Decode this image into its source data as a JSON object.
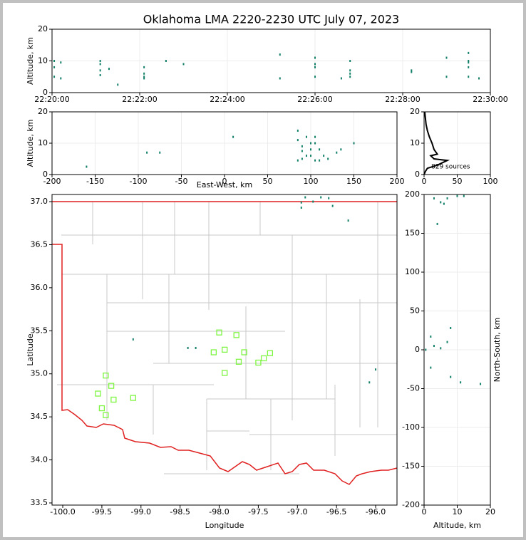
{
  "chart_data": [
    {
      "type": "scatter",
      "title": "Oklahoma LMA 2220-2230 UTC July 07, 2023",
      "ylabel": "Altitude, km",
      "xlim": [
        0,
        10
      ],
      "xticks": [
        {
          "value": 0,
          "label": "22:20:00"
        },
        {
          "value": 2,
          "label": "22:22:00"
        },
        {
          "value": 4,
          "label": "22:24:00"
        },
        {
          "value": 6,
          "label": "22:26:00"
        },
        {
          "value": 8,
          "label": "22:28:00"
        },
        {
          "value": 10,
          "label": "22:30:00"
        }
      ],
      "ylim": [
        0,
        20
      ],
      "yticks": [
        0,
        10,
        20
      ],
      "grid": true,
      "series": [
        {
          "color": "#13806a",
          "marker": "dot",
          "x": [
            0.05,
            0.05,
            0.05,
            0.2,
            0.2,
            1.1,
            1.1,
            1.1,
            1.1,
            1.3,
            1.5,
            2.1,
            2.1,
            2.1,
            2.1,
            2.6,
            3.0,
            5.2,
            5.2,
            6.0,
            6.0,
            6.0,
            6.0,
            6.6,
            6.8,
            6.8,
            6.8,
            6.8,
            8.2,
            8.2,
            9.0,
            9.0,
            9.5,
            9.5,
            9.5,
            9.5,
            9.5,
            9.74
          ],
          "y": [
            10,
            5,
            8,
            9.5,
            4.5,
            10,
            5.5,
            7,
            9,
            7.5,
            2.5,
            8,
            5,
            6,
            4.5,
            10,
            9,
            12,
            4.5,
            11,
            8,
            5,
            9,
            4.5,
            10,
            7,
            5,
            6,
            6.5,
            7,
            11,
            5,
            12.5,
            8,
            5,
            10,
            9.5,
            4.5
          ]
        }
      ]
    },
    {
      "type": "scatter",
      "xlabel": "East-West, km",
      "ylabel": "Altitude, km",
      "xlim": [
        -200,
        200
      ],
      "xticks": [
        -200,
        -150,
        -100,
        -50,
        0,
        50,
        100,
        150,
        200
      ],
      "ylim": [
        0,
        20
      ],
      "yticks": [
        0,
        10,
        20
      ],
      "grid": true,
      "series": [
        {
          "color": "#13806a",
          "marker": "dot",
          "x": [
            -160,
            10,
            -90,
            -75,
            85,
            85,
            90,
            95,
            100,
            105,
            105,
            100,
            110,
            95,
            90,
            85,
            105,
            110,
            120,
            130,
            135,
            150,
            100,
            115,
            90
          ],
          "y": [
            2.5,
            12,
            7,
            7,
            14,
            11,
            9,
            12,
            10,
            12,
            10,
            8,
            8,
            6,
            5,
            4.5,
            4.5,
            4.5,
            5,
            7,
            8,
            10,
            6,
            6,
            7.5
          ]
        }
      ]
    },
    {
      "type": "line",
      "annotation": "829 sources",
      "xlim": [
        0,
        100
      ],
      "xticks": [
        0,
        50,
        100
      ],
      "ylim": [
        0,
        20
      ],
      "yticks": [
        0,
        10,
        20
      ],
      "grid": true,
      "color": "#000000",
      "x": [
        0,
        2,
        5,
        20,
        35,
        15,
        10,
        20,
        15,
        12,
        8,
        5,
        3,
        2,
        1
      ],
      "values": [
        0,
        1,
        2,
        3,
        4.5,
        5,
        6,
        6.5,
        8,
        10,
        12,
        14,
        16,
        18,
        20
      ]
    },
    {
      "type": "scatter",
      "xlabel": "Longitude",
      "ylabel": "Latitude",
      "xlim": [
        -100.137,
        -95.727
      ],
      "xticks": [
        {
          "value": -100,
          "label": "-100.0"
        },
        -99.5,
        {
          "value": -99,
          "label": "-99.0"
        },
        -98.5,
        {
          "value": -98,
          "label": "-98.0"
        },
        -97.5,
        {
          "value": -97,
          "label": "-97.0"
        },
        -96.5,
        {
          "value": -96,
          "label": "-96.0"
        }
      ],
      "ylim": [
        33.475,
        37.083
      ],
      "yticks": [
        33.5,
        {
          "value": 34,
          "label": "34.0"
        },
        34.5,
        {
          "value": 35,
          "label": "35.0"
        },
        35.5,
        {
          "value": 36,
          "label": "36.0"
        },
        36.5,
        {
          "value": 37,
          "label": "37.0"
        }
      ],
      "grid": false,
      "series": [
        {
          "color": "#13806a",
          "marker": "dot",
          "x": [
            -96.9,
            -96.8,
            -96.95,
            -96.7,
            -96.6,
            -96.95,
            -96.55,
            -96.35,
            -98.3,
            -99.1,
            -98.4,
            -96.0,
            -96.08
          ],
          "y": [
            37.05,
            37.0,
            36.99,
            37.05,
            37.04,
            36.93,
            36.95,
            36.78,
            35.3,
            35.4,
            35.3,
            35.05,
            34.9
          ]
        },
        {
          "color": "#7ef542",
          "marker": "square",
          "x": [
            -99.45,
            -99.38,
            -99.55,
            -99.35,
            -99.1,
            -99.5,
            -99.45,
            -98.0,
            -97.78,
            -98.07,
            -97.93,
            -97.68,
            -97.75,
            -97.5,
            -97.43,
            -97.35,
            -97.93
          ],
          "y": [
            34.98,
            34.86,
            34.77,
            34.7,
            34.72,
            34.6,
            34.52,
            35.48,
            35.45,
            35.25,
            35.28,
            35.25,
            35.14,
            35.13,
            35.18,
            35.24,
            35.01
          ]
        }
      ]
    },
    {
      "type": "scatter",
      "xlabel": "Altitude, km",
      "ylabel": "North-South, km",
      "xlim": [
        0,
        20
      ],
      "xticks": [
        0,
        10,
        20
      ],
      "ylim": [
        -200,
        200
      ],
      "yticks": [
        -200,
        -150,
        -100,
        -50,
        0,
        50,
        100,
        150,
        200
      ],
      "grid": true,
      "series": [
        {
          "color": "#13806a",
          "marker": "dot",
          "x": [
            3,
            5,
            7,
            10,
            12,
            6,
            4,
            2,
            3,
            2,
            5,
            7,
            8,
            8,
            11,
            17,
            0.5
          ],
          "y": [
            195,
            190,
            195,
            198,
            198,
            188,
            162,
            17,
            5,
            -23,
            2,
            10,
            28,
            -35,
            -42,
            -44,
            0
          ]
        }
      ]
    }
  ]
}
